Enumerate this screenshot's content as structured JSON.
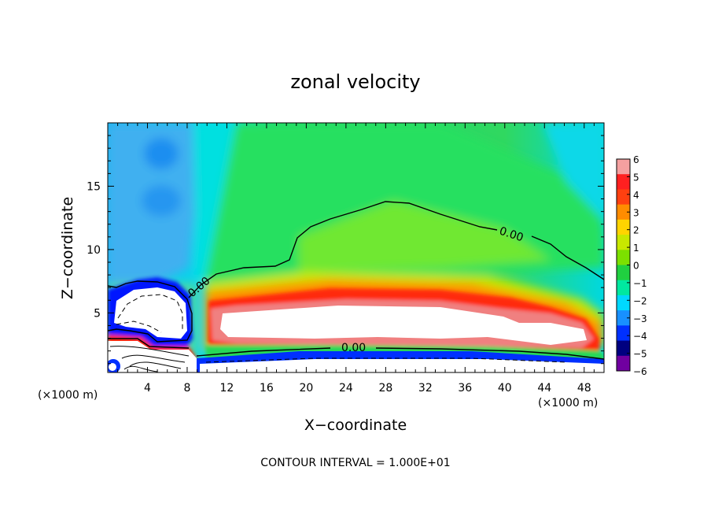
{
  "chart_data": {
    "type": "heatmap",
    "title": "zonal velocity",
    "xlabel": "X−coordinate",
    "ylabel": "Z−coordinate",
    "x_unit_left": "(×1000 m)",
    "x_unit_right": "(×1000 m)",
    "xlim": [
      0,
      50
    ],
    "ylim": [
      0.3,
      20
    ],
    "x_ticks": [
      4,
      8,
      12,
      16,
      20,
      24,
      28,
      32,
      36,
      40,
      44,
      48
    ],
    "y_ticks": [
      5,
      10,
      15
    ],
    "colorbar_ticks": [
      "6",
      "5",
      "4",
      "3",
      "2",
      "1",
      "0",
      "−1",
      "−2",
      "−3",
      "−4",
      "−5",
      "−6"
    ],
    "contour_label": "0.00",
    "footer": "CONTOUR INTERVAL = 1.000E+01",
    "colorbar_colors": [
      "#f4a0a0",
      "#ff2020",
      "#ff4010",
      "#ff8c00",
      "#ffd400",
      "#c8e800",
      "#7ce000",
      "#20d040",
      "#00e8a0",
      "#00d8ff",
      "#1890ff",
      "#0030ff",
      "#000080",
      "#7000a0"
    ]
  }
}
